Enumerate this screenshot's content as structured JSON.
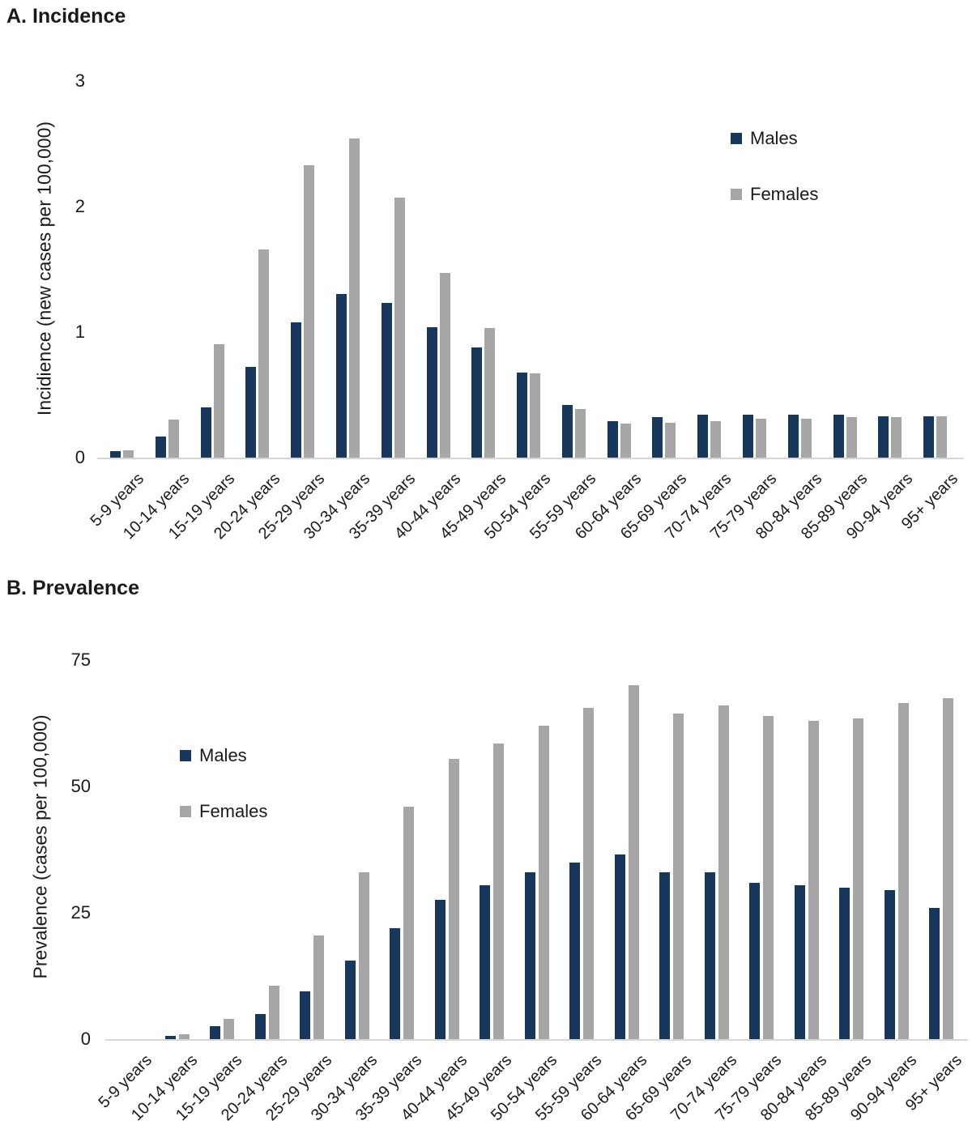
{
  "figure": {
    "legend_males": "Males",
    "legend_females": "Females"
  },
  "chart_data": [
    {
      "type": "bar",
      "title": "A. Incidence",
      "ylabel": "Incidience (new cases per 100,000)",
      "xlabel": "",
      "ylim": [
        0,
        3
      ],
      "yticks": [
        0,
        1,
        2,
        3
      ],
      "grid": false,
      "legend_position": "upper-right-inside",
      "categories": [
        "5-9 years",
        "10-14 years",
        "15-19 years",
        "20-24 years",
        "25-29 years",
        "30-34 years",
        "35-39 years",
        "40-44 years",
        "45-49 years",
        "50-54 years",
        "55-59 years",
        "60-64 years",
        "65-69 years",
        "70-74 years",
        "75-79 years",
        "80-84 years",
        "85-89 years",
        "90-94 years",
        "95+ years"
      ],
      "series": [
        {
          "name": "Males",
          "color": "#17375D",
          "values": [
            0.05,
            0.17,
            0.4,
            0.72,
            1.08,
            1.3,
            1.23,
            1.04,
            0.88,
            0.68,
            0.42,
            0.29,
            0.32,
            0.34,
            0.34,
            0.34,
            0.34,
            0.33,
            0.33
          ]
        },
        {
          "name": "Females",
          "color": "#A6A6A6",
          "values": [
            0.06,
            0.3,
            0.9,
            1.66,
            2.33,
            2.54,
            2.07,
            1.47,
            1.03,
            0.67,
            0.39,
            0.27,
            0.28,
            0.29,
            0.31,
            0.31,
            0.32,
            0.32,
            0.33
          ]
        }
      ]
    },
    {
      "type": "bar",
      "title": "B. Prevalence",
      "ylabel": "Prevalence (cases per 100,000)",
      "xlabel": "",
      "ylim": [
        0,
        75
      ],
      "yticks": [
        0,
        25,
        50,
        75
      ],
      "grid": false,
      "legend_position": "upper-left-inside",
      "categories": [
        "5-9 years",
        "10-14 years",
        "15-19 years",
        "20-24 years",
        "25-29 years",
        "30-34 years",
        "35-39 years",
        "40-44 years",
        "45-49 years",
        "50-54 years",
        "55-59 years",
        "60-64 years",
        "65-69 years",
        "70-74 years",
        "75-79 years",
        "80-84 years",
        "85-89 years",
        "90-94 years",
        "95+ years"
      ],
      "series": [
        {
          "name": "Males",
          "color": "#17375D",
          "values": [
            0,
            0.6,
            2.6,
            5,
            9.5,
            15.5,
            22,
            27.5,
            30.5,
            33,
            35,
            36.5,
            33,
            33,
            31,
            30.5,
            30,
            29.5,
            26
          ]
        },
        {
          "name": "Females",
          "color": "#A6A6A6",
          "values": [
            0,
            1,
            4,
            10.5,
            20.5,
            33,
            46,
            55.5,
            58.5,
            62,
            65.5,
            70,
            64.5,
            66,
            64,
            63,
            63.5,
            66.5,
            67.5
          ]
        }
      ]
    }
  ]
}
